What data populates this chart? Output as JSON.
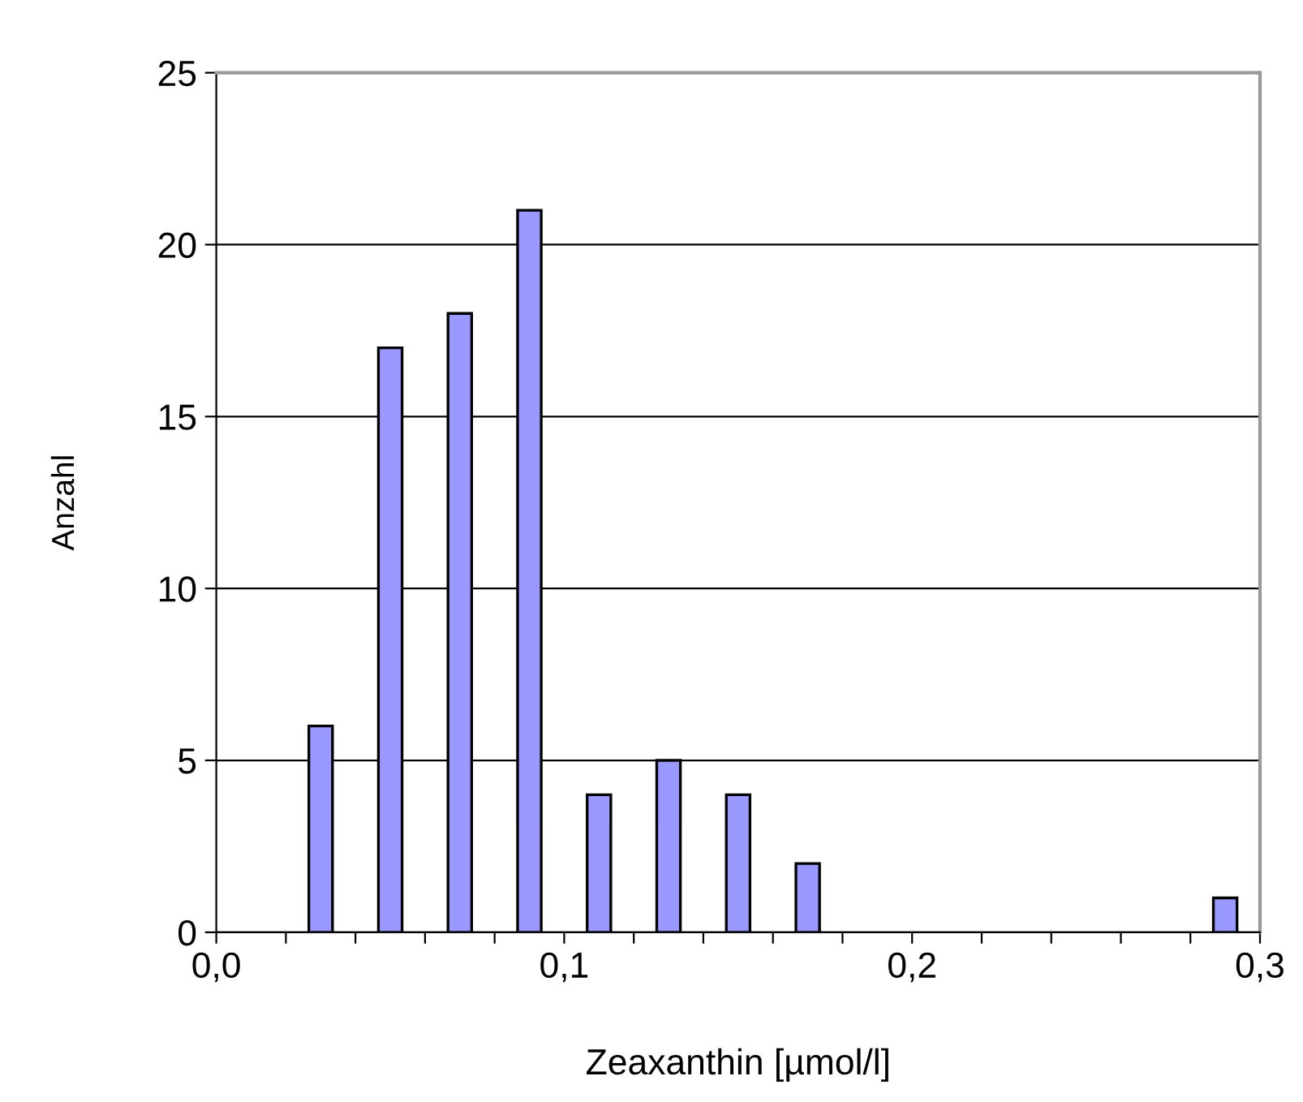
{
  "chart_data": {
    "type": "bar",
    "xlabel": "Zeaxanthin [µmol/l]",
    "ylabel": "Anzahl",
    "x": [
      0.03,
      0.05,
      0.07,
      0.09,
      0.11,
      0.13,
      0.15,
      0.17,
      0.29
    ],
    "values": [
      6,
      17,
      18,
      21,
      4,
      5,
      4,
      2,
      1
    ],
    "color": "#9999ff",
    "xlim": [
      0,
      0.3
    ],
    "xticks": [
      {
        "value": 0,
        "label": "0,0"
      },
      {
        "value": 0.02,
        "label": null
      },
      {
        "value": 0.04,
        "label": null
      },
      {
        "value": 0.06,
        "label": null
      },
      {
        "value": 0.08,
        "label": null
      },
      {
        "value": 0.1,
        "label": "0,1"
      },
      {
        "value": 0.12,
        "label": null
      },
      {
        "value": 0.14,
        "label": null
      },
      {
        "value": 0.16,
        "label": null
      },
      {
        "value": 0.18,
        "label": null
      },
      {
        "value": 0.2,
        "label": "0,2"
      },
      {
        "value": 0.22,
        "label": null
      },
      {
        "value": 0.24,
        "label": null
      },
      {
        "value": 0.26,
        "label": null
      },
      {
        "value": 0.28,
        "label": null
      },
      {
        "value": 0.3,
        "label": "0,3"
      }
    ],
    "ylim": [
      0,
      25
    ],
    "yticks": [
      0,
      5,
      10,
      15,
      20,
      25
    ],
    "grid": "y"
  }
}
